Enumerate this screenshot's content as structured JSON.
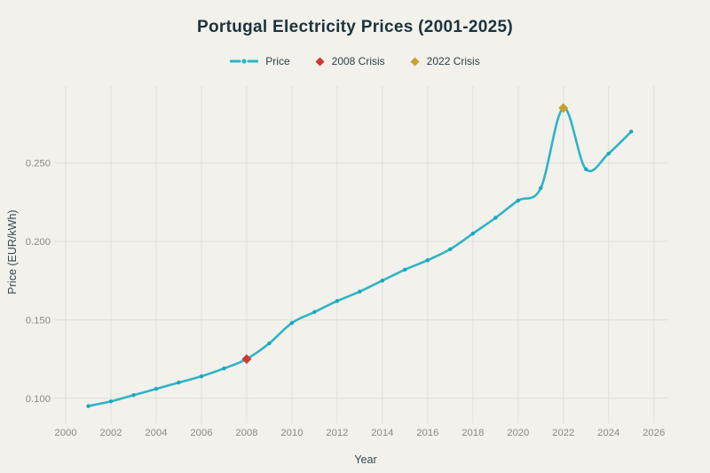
{
  "title": "Portugal Electricity Prices (2001-2025)",
  "axes": {
    "x_label": "Year",
    "y_label": "Price (EUR/kWh)"
  },
  "legend": {
    "items": [
      {
        "label": "Price",
        "color": "#2fb4c6"
      },
      {
        "label": "2008 Crisis",
        "color": "#ce3a33"
      },
      {
        "label": "2022 Crisis",
        "color": "#c8a22b"
      }
    ]
  },
  "chart_data": {
    "type": "line",
    "title": "Portugal Electricity Prices (2001-2025)",
    "xlabel": "Year",
    "ylabel": "Price (EUR/kWh)",
    "x": [
      2001,
      2002,
      2003,
      2004,
      2005,
      2006,
      2007,
      2008,
      2009,
      2010,
      2011,
      2012,
      2013,
      2014,
      2015,
      2016,
      2017,
      2018,
      2019,
      2020,
      2021,
      2022,
      2023,
      2024,
      2025
    ],
    "series": [
      {
        "name": "Price",
        "color": "#2fb4c6",
        "marker_color": "#17a8bb",
        "values": [
          0.095,
          0.098,
          0.102,
          0.106,
          0.11,
          0.114,
          0.119,
          0.125,
          0.135,
          0.148,
          0.155,
          0.162,
          0.168,
          0.175,
          0.182,
          0.188,
          0.195,
          0.205,
          0.215,
          0.226,
          0.234,
          0.285,
          0.246,
          0.256,
          0.27
        ]
      }
    ],
    "annotations": [
      {
        "label": "2008 Crisis",
        "x": 2008,
        "y": 0.125,
        "marker": "diamond",
        "color": "#ce3a33"
      },
      {
        "label": "2022 Crisis",
        "x": 2022,
        "y": 0.285,
        "marker": "diamond",
        "color": "#c8a22b"
      }
    ],
    "xlim": [
      2000,
      2026.6
    ],
    "ylim": [
      0.088,
      0.299
    ],
    "xticks": [
      "2000",
      "2002",
      "2004",
      "2006",
      "2008",
      "2010",
      "2012",
      "2014",
      "2016",
      "2018",
      "2020",
      "2022",
      "2024",
      "2026"
    ],
    "yticks": [
      {
        "value": 0.1,
        "label": "0.100"
      },
      {
        "value": 0.15,
        "label": "0.150"
      },
      {
        "value": 0.2,
        "label": "0.200"
      },
      {
        "value": 0.25,
        "label": "0.250"
      }
    ],
    "grid": true,
    "legend_position": "top-center",
    "line_smoothing": true
  },
  "style": {
    "background": "#f2f1ec",
    "grid_color": "#e0e0d9",
    "tick_text_color": "#8b8b85",
    "axis_label_color": "#33464e",
    "title_color": "#1b333c"
  }
}
